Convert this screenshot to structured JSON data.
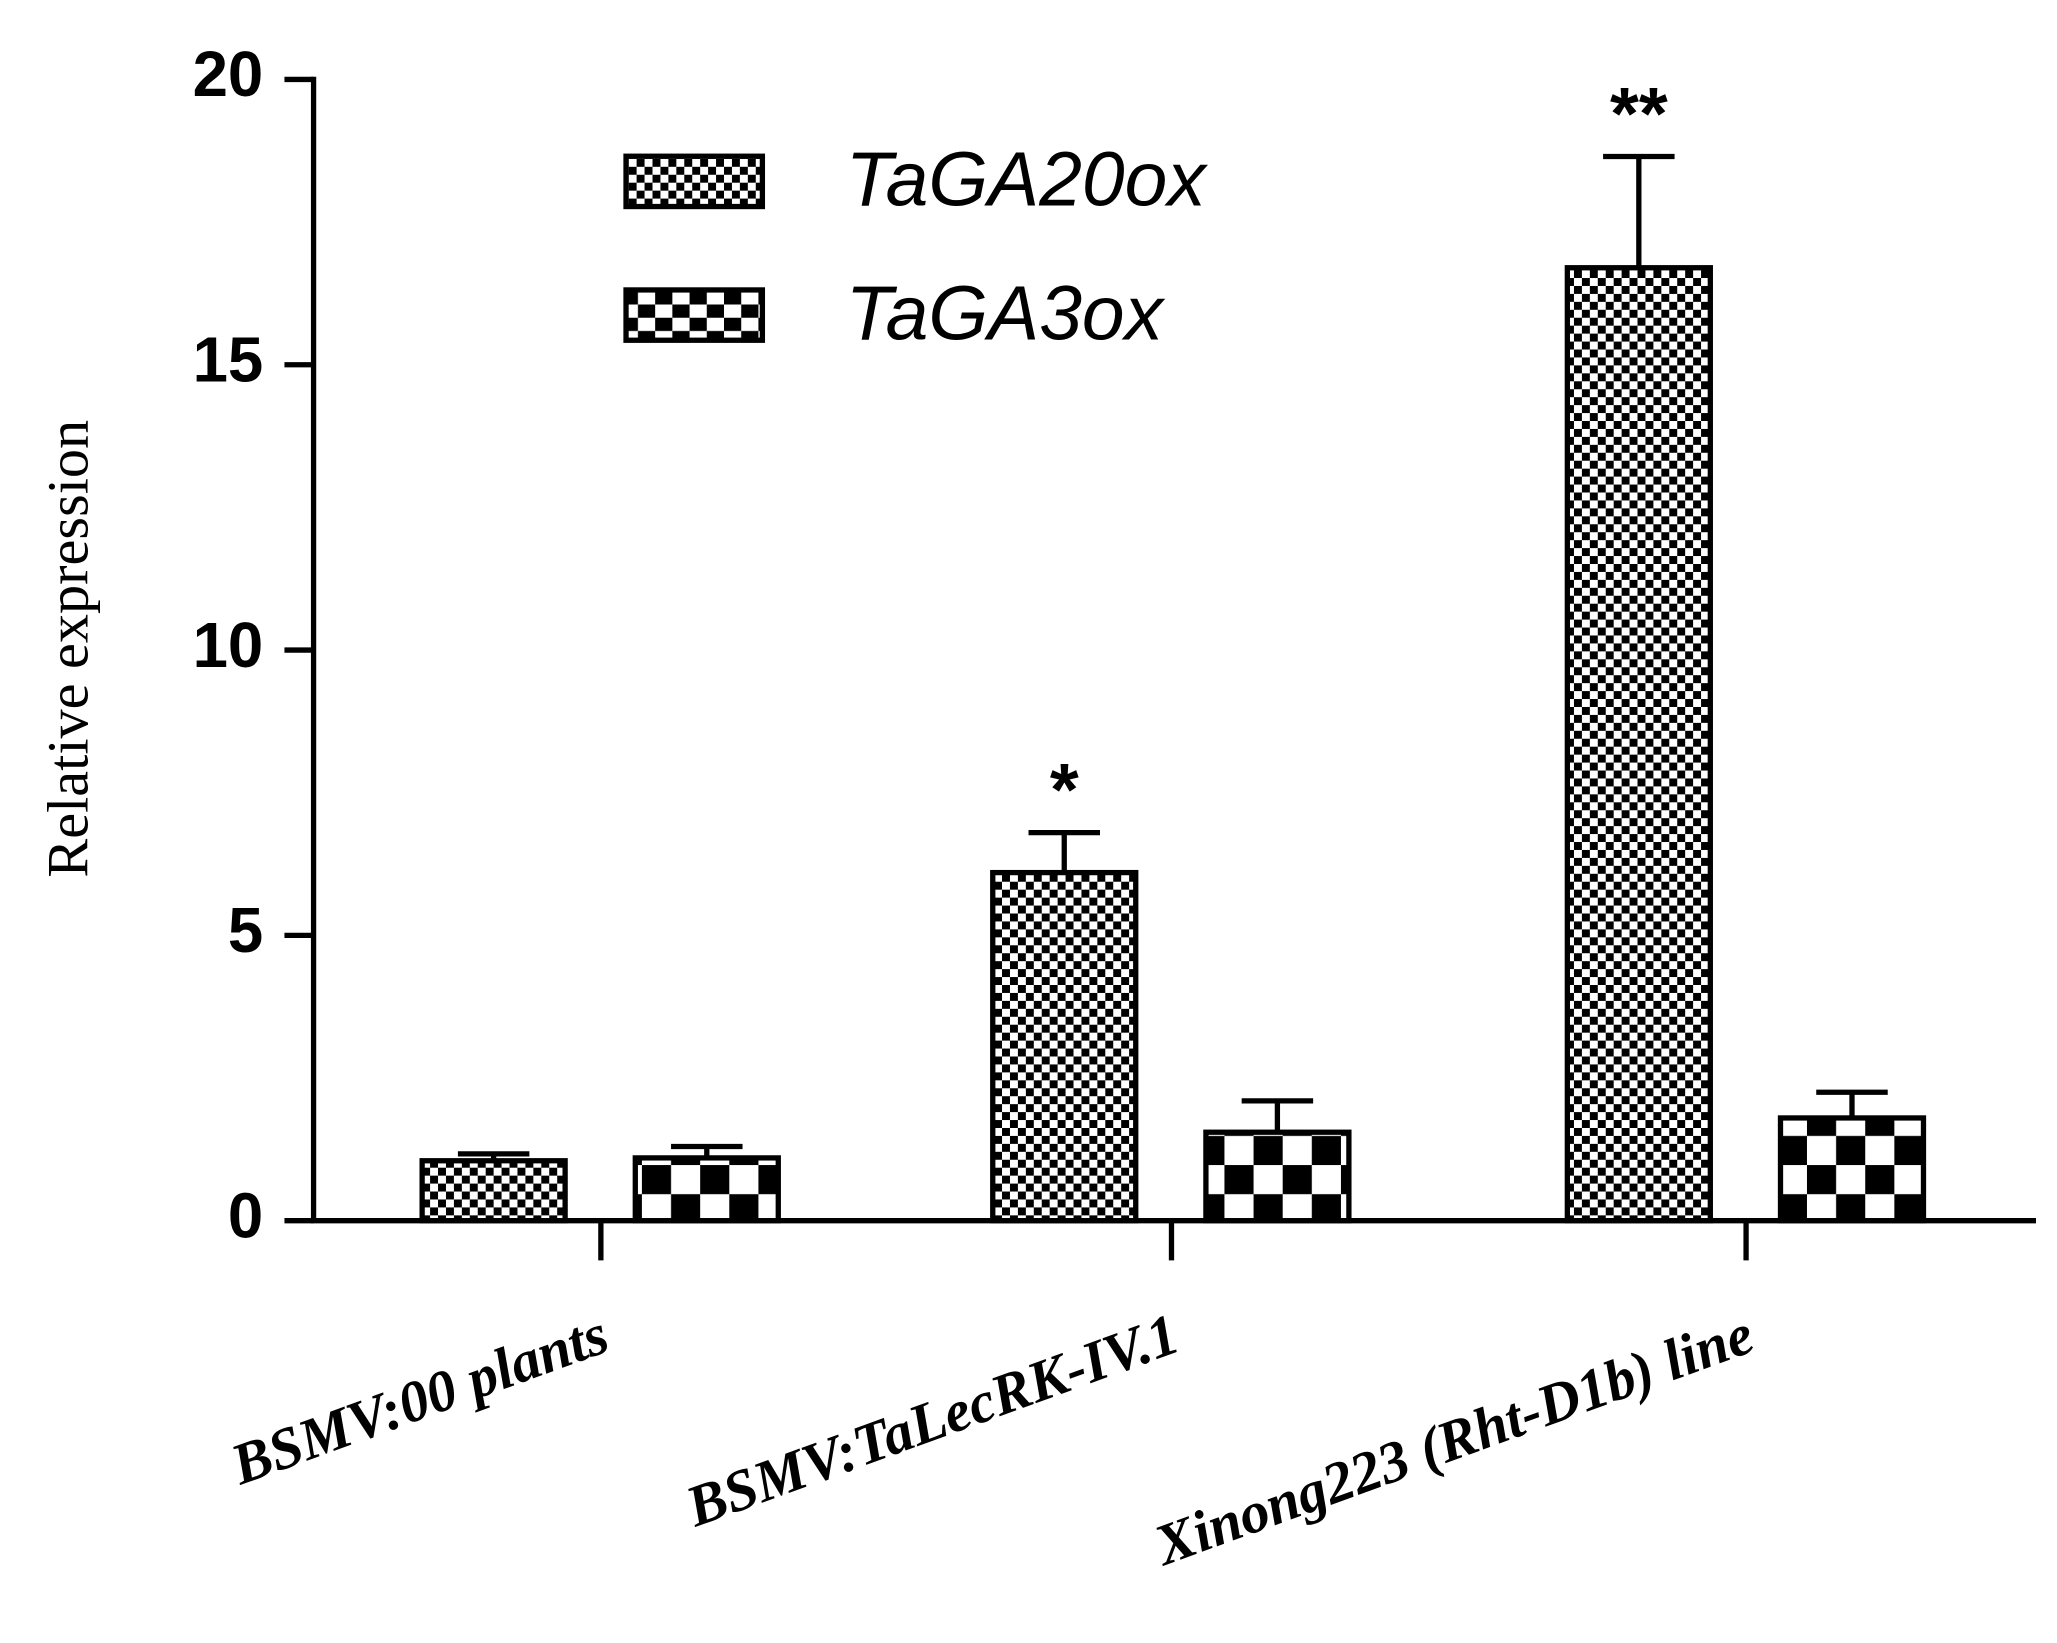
{
  "chart_data": {
    "type": "bar",
    "y_label": "Relative expression",
    "categories": [
      "BSMV:00 plants",
      "BSMV:TaLecRK-IV.1",
      "Xinong223 (Rht-D1b) line"
    ],
    "series": [
      {
        "name": "TaGA20ox",
        "color": "#000000",
        "values": [
          1.05,
          6.1,
          16.7
        ],
        "errors": [
          0.12,
          0.7,
          1.95
        ],
        "significance": [
          null,
          "*",
          "**"
        ]
      },
      {
        "name": "TaGA3ox",
        "color": "#000000",
        "values": [
          1.1,
          1.55,
          1.8
        ],
        "errors": [
          0.2,
          0.55,
          0.45
        ]
      }
    ],
    "ylim": [
      0,
      20
    ],
    "yticks": [
      0,
      5,
      10,
      15,
      20
    ]
  }
}
